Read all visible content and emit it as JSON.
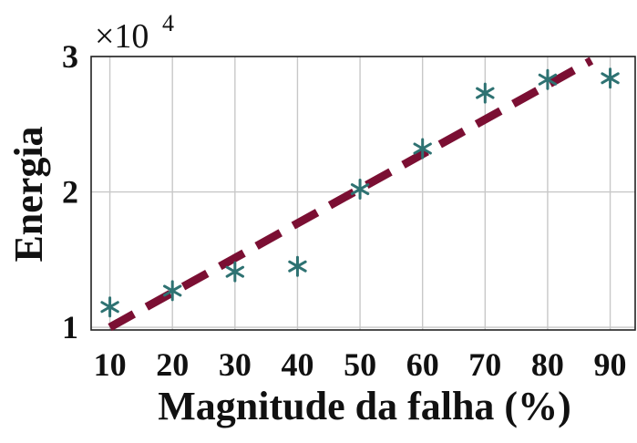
{
  "chart_data": {
    "type": "scatter",
    "xlabel": "Magnitude da falha (%)",
    "ylabel": "Energia",
    "y_multiplier": {
      "base": "×10",
      "exponent": "4"
    },
    "x_ticks": [
      "10",
      "20",
      "30",
      "40",
      "50",
      "60",
      "70",
      "80",
      "90"
    ],
    "y_ticks": [
      "1",
      "2",
      "3"
    ],
    "xlim": [
      7,
      94
    ],
    "ylim": [
      0.98,
      3.0
    ],
    "grid": true,
    "series": [
      {
        "type": "scatter",
        "marker": "asterisk",
        "color": "#2e7272",
        "x": [
          10,
          20,
          30,
          40,
          50,
          60,
          70,
          80,
          90
        ],
        "y": [
          1.15,
          1.27,
          1.41,
          1.45,
          2.02,
          2.32,
          2.73,
          2.83,
          2.84
        ]
      },
      {
        "type": "line",
        "style": "dashed",
        "color": "#7b0f33",
        "x": [
          10,
          87
        ],
        "y": [
          1.0,
          2.97
        ]
      }
    ]
  }
}
